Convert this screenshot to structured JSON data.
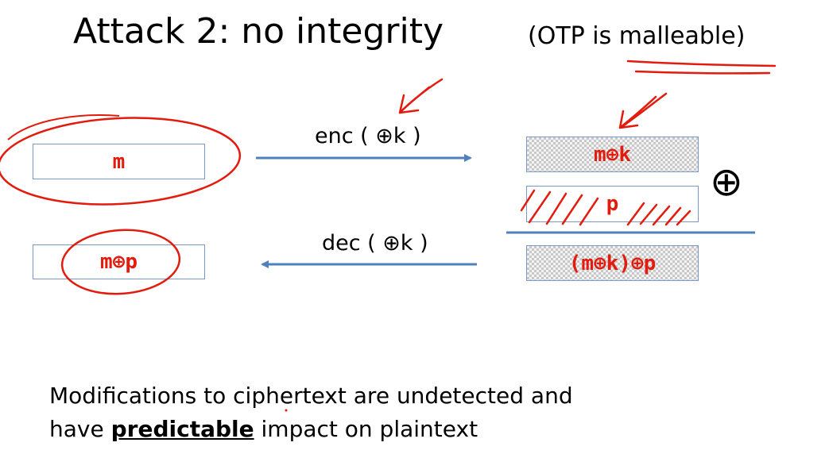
{
  "title": "Attack 2:   no integrity",
  "subtitle": "(OTP is malleable)",
  "left_boxes": {
    "plaintext": "m",
    "modified_plaintext": "m⊕p"
  },
  "right_boxes": {
    "ciphertext": "m⊕k",
    "perturbation": "p",
    "modified_ciphertext": "(m⊕k)⊕p"
  },
  "arrows": {
    "enc_label": "enc  ( ⊕k )",
    "dec_label": "dec ( ⊕k )"
  },
  "xor_operator": "⊕",
  "footer": {
    "line1": "Modifications to ciphertext are undetected and",
    "line2_prefix": "have ",
    "line2_emphasis": "predictable",
    "line2_suffix": " impact on plaintext"
  },
  "colors": {
    "annotation_red": "#e31b0d",
    "arrow_blue": "#4f81bd",
    "box_border": "#7b98c8"
  }
}
